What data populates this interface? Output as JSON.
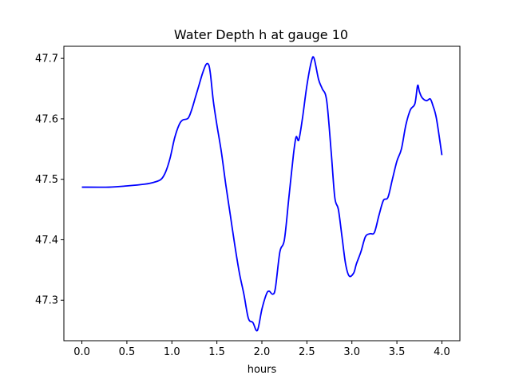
{
  "chart_data": {
    "type": "line",
    "title": "Water Depth h at gauge 10",
    "xlabel": "hours",
    "ylabel": "",
    "xlim": [
      -0.2,
      4.2
    ],
    "ylim": [
      47.233,
      47.72
    ],
    "grid": false,
    "legend": "none",
    "x_ticks": [
      0.0,
      0.5,
      1.0,
      1.5,
      2.0,
      2.5,
      3.0,
      3.5,
      4.0
    ],
    "x_tick_labels": [
      "0.0",
      "0.5",
      "1.0",
      "1.5",
      "2.0",
      "2.5",
      "3.0",
      "3.5",
      "4.0"
    ],
    "y_ticks": [
      47.3,
      47.4,
      47.5,
      47.6,
      47.7
    ],
    "y_tick_labels": [
      "47.3",
      "47.4",
      "47.5",
      "47.6",
      "47.7"
    ],
    "series": [
      {
        "color": "#0000ff",
        "x": [
          0.0,
          0.3,
          0.5,
          0.7,
          0.8,
          0.88,
          0.93,
          0.98,
          1.03,
          1.08,
          1.12,
          1.18,
          1.22,
          1.26,
          1.3,
          1.34,
          1.38,
          1.41,
          1.43,
          1.46,
          1.5,
          1.55,
          1.6,
          1.65,
          1.7,
          1.75,
          1.8,
          1.85,
          1.9,
          1.95,
          2.0,
          2.05,
          2.08,
          2.12,
          2.15,
          2.2,
          2.25,
          2.3,
          2.35,
          2.38,
          2.41,
          2.45,
          2.5,
          2.55,
          2.58,
          2.63,
          2.67,
          2.72,
          2.77,
          2.81,
          2.85,
          2.89,
          2.93,
          2.97,
          3.02,
          3.05,
          3.1,
          3.15,
          3.2,
          3.25,
          3.3,
          3.35,
          3.4,
          3.45,
          3.5,
          3.55,
          3.6,
          3.65,
          3.7,
          3.73,
          3.75,
          3.78,
          3.83,
          3.87,
          3.9,
          3.94,
          4.0
        ],
        "y": [
          47.487,
          47.487,
          47.489,
          47.492,
          47.495,
          47.5,
          47.512,
          47.535,
          47.568,
          47.59,
          47.598,
          47.601,
          47.615,
          47.635,
          47.655,
          47.675,
          47.69,
          47.689,
          47.672,
          47.63,
          47.59,
          47.545,
          47.49,
          47.44,
          47.39,
          47.345,
          47.31,
          47.27,
          47.263,
          47.25,
          47.285,
          47.31,
          47.315,
          47.31,
          47.32,
          47.38,
          47.4,
          47.47,
          47.54,
          47.57,
          47.565,
          47.6,
          47.655,
          47.695,
          47.7,
          47.665,
          47.65,
          47.63,
          47.545,
          47.47,
          47.45,
          47.405,
          47.36,
          47.34,
          47.345,
          47.36,
          47.38,
          47.405,
          47.41,
          47.412,
          47.44,
          47.465,
          47.47,
          47.5,
          47.53,
          47.55,
          47.59,
          47.615,
          47.625,
          47.655,
          47.645,
          47.635,
          47.63,
          47.633,
          47.622,
          47.6,
          47.54
        ]
      }
    ]
  }
}
